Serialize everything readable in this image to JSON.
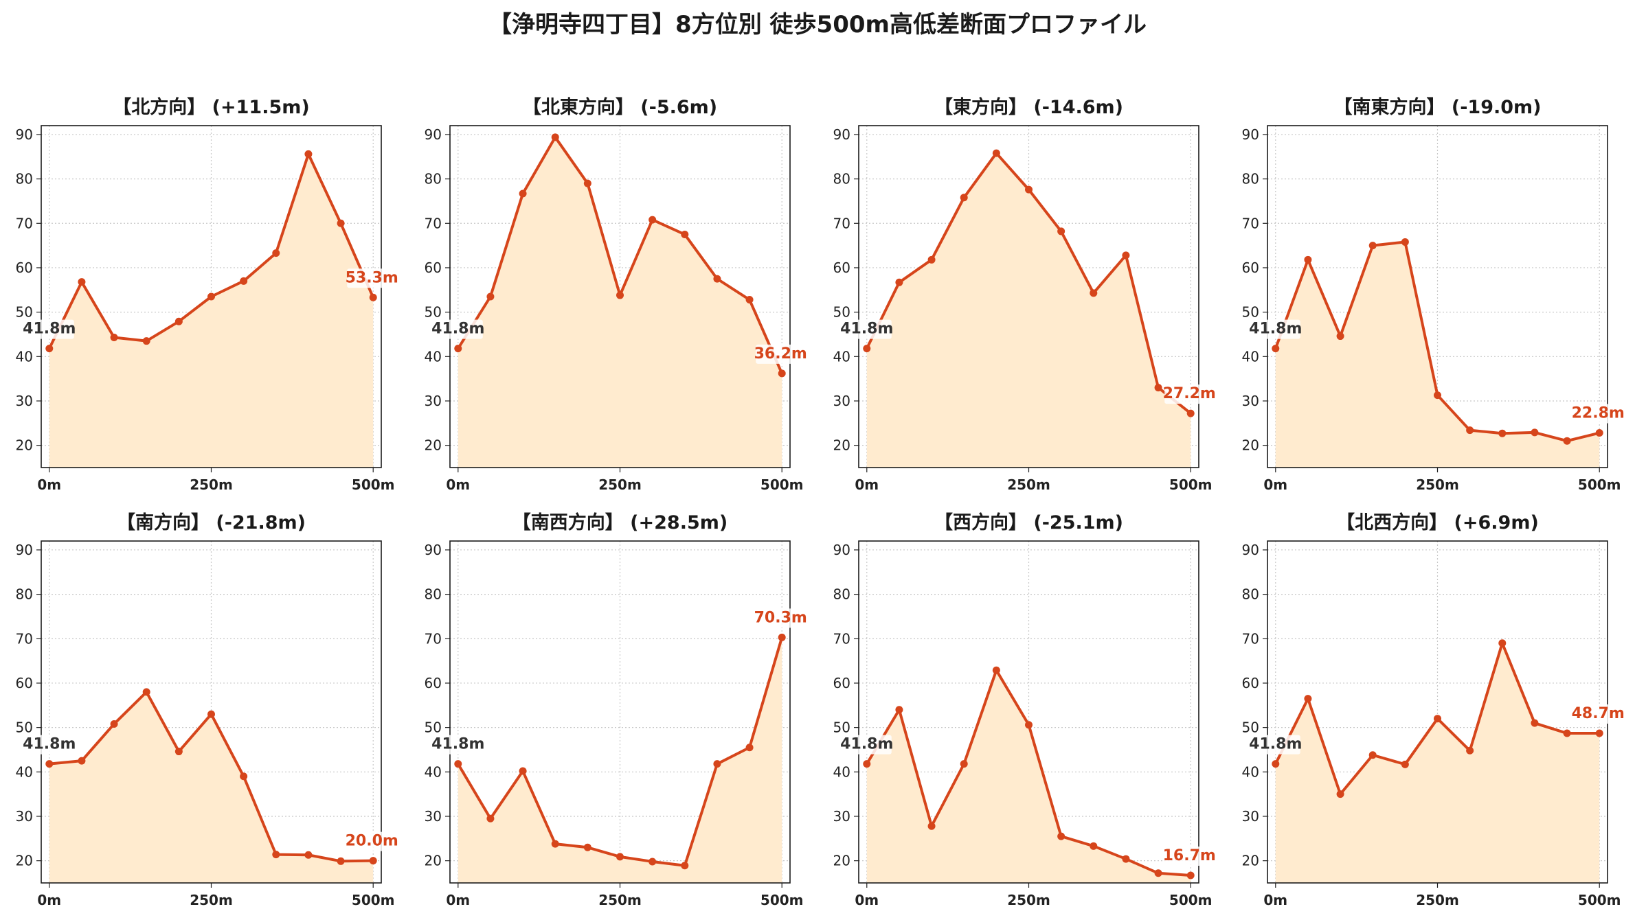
{
  "title": "【浄明寺四丁目】8方位別 徒歩500m高低差断面プロファイル",
  "colors": {
    "line": "#d6451b",
    "fill": "#ffebcf",
    "start_label": "#333333",
    "end_label": "#d6451b",
    "grid": "#c8c8c8"
  },
  "chart_data": [
    {
      "type": "area",
      "title": "【北方向】 (+11.5m)",
      "x": [
        0,
        50,
        100,
        150,
        200,
        250,
        300,
        350,
        400,
        450,
        500
      ],
      "values": [
        41.8,
        56.8,
        44.3,
        43.5,
        47.9,
        53.5,
        57.0,
        63.3,
        85.6,
        70.0,
        53.3
      ],
      "start_label": "41.8m",
      "end_label": "53.3m",
      "ylim": [
        15,
        92
      ],
      "yticks": [
        20,
        30,
        40,
        50,
        60,
        70,
        80,
        90
      ],
      "xticks": [
        "0m",
        "250m",
        "500m"
      ],
      "grid": true
    },
    {
      "type": "area",
      "title": "【北東方向】 (-5.6m)",
      "x": [
        0,
        50,
        100,
        150,
        200,
        250,
        300,
        350,
        400,
        450,
        500
      ],
      "values": [
        41.8,
        53.5,
        76.7,
        89.4,
        79.0,
        53.8,
        70.8,
        67.5,
        57.5,
        52.8,
        36.2
      ],
      "start_label": "41.8m",
      "end_label": "36.2m",
      "ylim": [
        15,
        92
      ],
      "yticks": [
        20,
        30,
        40,
        50,
        60,
        70,
        80,
        90
      ],
      "xticks": [
        "0m",
        "250m",
        "500m"
      ],
      "grid": true
    },
    {
      "type": "area",
      "title": "【東方向】 (-14.6m)",
      "x": [
        0,
        50,
        100,
        150,
        200,
        250,
        300,
        350,
        400,
        450,
        500
      ],
      "values": [
        41.8,
        56.7,
        61.8,
        75.8,
        85.8,
        77.6,
        68.2,
        54.3,
        62.8,
        33.0,
        27.2
      ],
      "start_label": "41.8m",
      "end_label": "27.2m",
      "ylim": [
        15,
        92
      ],
      "yticks": [
        20,
        30,
        40,
        50,
        60,
        70,
        80,
        90
      ],
      "xticks": [
        "0m",
        "250m",
        "500m"
      ],
      "grid": true
    },
    {
      "type": "area",
      "title": "【南東方向】 (-19.0m)",
      "x": [
        0,
        50,
        100,
        150,
        200,
        250,
        300,
        350,
        400,
        450,
        500
      ],
      "values": [
        41.8,
        61.8,
        44.6,
        65.0,
        65.8,
        31.3,
        23.4,
        22.7,
        22.9,
        21.0,
        22.8
      ],
      "start_label": "41.8m",
      "end_label": "22.8m",
      "ylim": [
        15,
        92
      ],
      "yticks": [
        20,
        30,
        40,
        50,
        60,
        70,
        80,
        90
      ],
      "xticks": [
        "0m",
        "250m",
        "500m"
      ],
      "grid": true
    },
    {
      "type": "area",
      "title": "【南方向】 (-21.8m)",
      "x": [
        0,
        50,
        100,
        150,
        200,
        250,
        300,
        350,
        400,
        450,
        500
      ],
      "values": [
        41.8,
        42.5,
        50.8,
        58.0,
        44.6,
        53.0,
        39.0,
        21.4,
        21.3,
        19.9,
        20.0
      ],
      "start_label": "41.8m",
      "end_label": "20.0m",
      "ylim": [
        15,
        92
      ],
      "yticks": [
        20,
        30,
        40,
        50,
        60,
        70,
        80,
        90
      ],
      "xticks": [
        "0m",
        "250m",
        "500m"
      ],
      "grid": true
    },
    {
      "type": "area",
      "title": "【南西方向】 (+28.5m)",
      "x": [
        0,
        50,
        100,
        150,
        200,
        250,
        300,
        350,
        400,
        450,
        500
      ],
      "values": [
        41.8,
        29.5,
        40.2,
        23.8,
        23.0,
        20.9,
        19.8,
        18.9,
        41.8,
        45.5,
        70.3
      ],
      "start_label": "41.8m",
      "end_label": "70.3m",
      "ylim": [
        15,
        92
      ],
      "yticks": [
        20,
        30,
        40,
        50,
        60,
        70,
        80,
        90
      ],
      "xticks": [
        "0m",
        "250m",
        "500m"
      ],
      "grid": true
    },
    {
      "type": "area",
      "title": "【西方向】 (-25.1m)",
      "x": [
        0,
        50,
        100,
        150,
        200,
        250,
        300,
        350,
        400,
        450,
        500
      ],
      "values": [
        41.8,
        54.0,
        27.8,
        41.8,
        62.9,
        50.6,
        25.5,
        23.3,
        20.4,
        17.2,
        16.7
      ],
      "start_label": "41.8m",
      "end_label": "16.7m",
      "ylim": [
        15,
        92
      ],
      "yticks": [
        20,
        30,
        40,
        50,
        60,
        70,
        80,
        90
      ],
      "xticks": [
        "0m",
        "250m",
        "500m"
      ],
      "grid": true
    },
    {
      "type": "area",
      "title": "【北西方向】 (+6.9m)",
      "x": [
        0,
        50,
        100,
        150,
        200,
        250,
        300,
        350,
        400,
        450,
        500
      ],
      "values": [
        41.8,
        56.5,
        35.0,
        43.8,
        41.7,
        52.0,
        44.8,
        69.0,
        51.0,
        48.7,
        48.7
      ],
      "start_label": "41.8m",
      "end_label": "48.7m",
      "ylim": [
        15,
        92
      ],
      "yticks": [
        20,
        30,
        40,
        50,
        60,
        70,
        80,
        90
      ],
      "xticks": [
        "0m",
        "250m",
        "500m"
      ],
      "grid": true
    }
  ]
}
